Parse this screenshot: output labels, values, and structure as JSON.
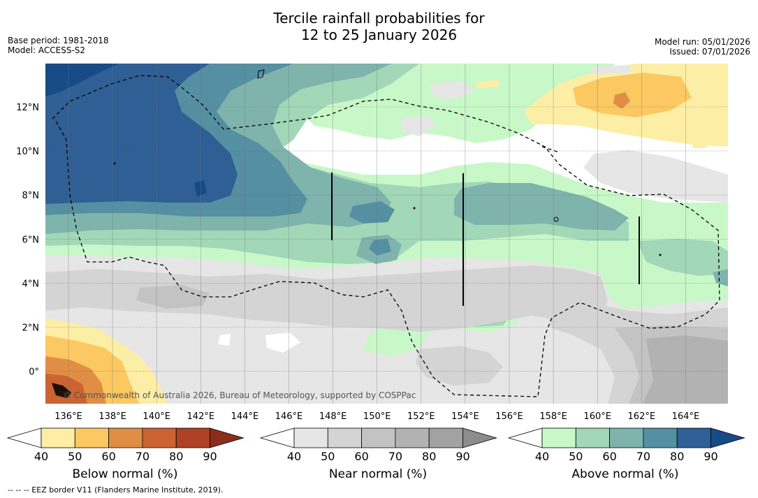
{
  "title": {
    "line1": "Tercile rainfall probabilities for",
    "line2": "12 to 25 January 2026"
  },
  "meta": {
    "base_period": "Base period: 1981-2018",
    "model": "Model: ACCESS-S2",
    "model_run": "Model run: 05/01/2026",
    "issued": "Issued: 07/01/2026"
  },
  "map": {
    "lon_labels": [
      "136°E",
      "138°E",
      "140°E",
      "142°E",
      "144°E",
      "146°E",
      "148°E",
      "150°E",
      "152°E",
      "154°E",
      "156°E",
      "158°E",
      "160°E",
      "162°E",
      "164°E"
    ],
    "lat_labels": [
      "12°N",
      "10°N",
      "8°N",
      "6°N",
      "4°N",
      "2°N",
      "0°"
    ],
    "copyright": "© Commonwealth of Australia 2026, Bureau of Meteorology, supported by COSPPac"
  },
  "colorbars": [
    {
      "name": "below",
      "label": "Below normal (%)",
      "ticks": [
        "40",
        "50",
        "60",
        "70",
        "80",
        "90"
      ],
      "colors": [
        "#fdeea5",
        "#fbc862",
        "#e08e45",
        "#cb6333",
        "#ad4225",
        "#8c2d1c"
      ]
    },
    {
      "name": "near",
      "label": "Near normal (%)",
      "ticks": [
        "40",
        "50",
        "60",
        "70",
        "80",
        "90"
      ],
      "colors": [
        "#e6e6e6",
        "#d4d4d4",
        "#c3c3c3",
        "#b2b2b2",
        "#a2a2a2",
        "#8c8c8c"
      ]
    },
    {
      "name": "above",
      "label": "Above normal (%)",
      "ticks": [
        "40",
        "50",
        "60",
        "70",
        "80",
        "90"
      ],
      "colors": [
        "#c8f8c8",
        "#a2d7b8",
        "#7fb4ad",
        "#558fa2",
        "#2f5f94",
        "#164b86"
      ]
    }
  ],
  "legend": {
    "footnote": "-- -- -- EEZ border V11 (Flanders Marine Institute, 2019)."
  }
}
